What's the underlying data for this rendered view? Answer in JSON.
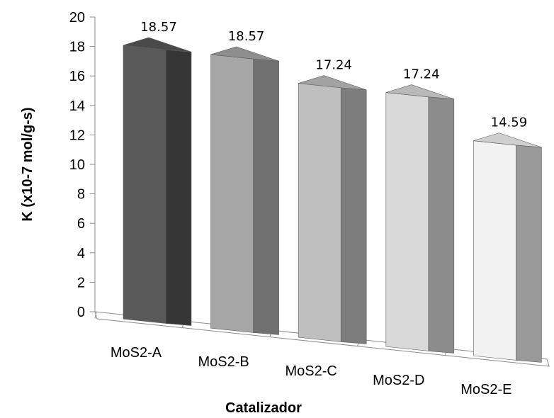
{
  "chart_data": {
    "type": "bar",
    "style": "3d-perspective",
    "categories": [
      "MoS2-A",
      "MoS2-B",
      "MoS2-C",
      "MoS2-D",
      "MoS2-E"
    ],
    "values": [
      18.57,
      18.57,
      17.24,
      17.24,
      14.59
    ],
    "data_labels": [
      "18.57",
      "18.57",
      "17.24",
      "17.24",
      "14.59"
    ],
    "xlabel": "Catalizador",
    "ylabel": "K (x10-7 mol/g-s)",
    "ylim": [
      0,
      20
    ],
    "yticks": [
      "0",
      "2",
      "4",
      "6",
      "8",
      "10",
      "12",
      "14",
      "16",
      "18",
      "20"
    ],
    "grid": false,
    "legend": "none",
    "bar_colors": [
      "#595959",
      "#a6a6a6",
      "#bfbfbf",
      "#d9d9d9",
      "#f2f2f2"
    ],
    "bar_side_colors": [
      "#363636",
      "#717171",
      "#7d7d7d",
      "#8c8c8c",
      "#9a9a9a"
    ],
    "bar_top_colors": [
      "#4a4a4a",
      "#8e8e8e",
      "#a2a2a2",
      "#b9b9b9",
      "#cfcfcf"
    ]
  }
}
